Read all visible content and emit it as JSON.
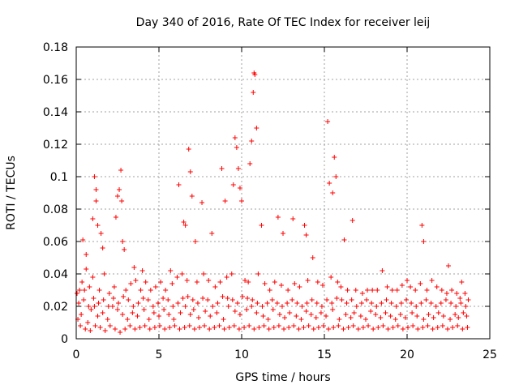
{
  "chart_data": {
    "type": "scatter",
    "title": "Day 340 of 2016, Rate Of TEC Index for receiver leij",
    "xlabel": "GPS time / hours",
    "ylabel": "ROTI / TECUs",
    "xlim": [
      0,
      25
    ],
    "ylim": [
      0,
      0.18
    ],
    "x_ticks": [
      0,
      5,
      10,
      15,
      20,
      25
    ],
    "x_tick_labels": [
      "0",
      "5",
      "10",
      "15",
      "20",
      "25"
    ],
    "y_ticks": [
      0,
      0.02,
      0.04,
      0.06,
      0.08,
      0.1,
      0.12,
      0.14,
      0.16,
      0.18
    ],
    "y_tick_labels": [
      "0",
      "0.02",
      "0.04",
      "0.06",
      "0.08",
      "0.1",
      "0.12",
      "0.14",
      "0.16",
      "0.18"
    ],
    "grid": true,
    "marker": "+",
    "marker_color": "#ff0000",
    "series": [
      {
        "name": "ROTI",
        "x": [
          0.4,
          0.6,
          0.6,
          1.0,
          1.1,
          1.2,
          1.2,
          1.3,
          1.5,
          1.6,
          2.4,
          2.5,
          2.6,
          2.7,
          2.75,
          2.8,
          2.9,
          3.5,
          4.0,
          5.7,
          6.2,
          6.5,
          6.6,
          6.8,
          6.9,
          7.0,
          7.2,
          7.6,
          8.2,
          8.8,
          9.0,
          9.5,
          9.6,
          9.7,
          9.8,
          9.9,
          10.0,
          10.5,
          10.6,
          10.7,
          10.75,
          10.8,
          10.9,
          11.2,
          12.2,
          12.5,
          13.1,
          13.8,
          13.9,
          14.3,
          15.2,
          15.3,
          15.5,
          15.6,
          15.7,
          16.2,
          16.7,
          18.5,
          20.0,
          20.9,
          21.0,
          22.5,
          23.3,
          0.05,
          0.2,
          0.35,
          0.5,
          0.8,
          1.0,
          1.4,
          1.7,
          2.0,
          2.3,
          3.0,
          3.3,
          3.6,
          3.9,
          4.2,
          4.5,
          4.8,
          5.1,
          5.4,
          5.8,
          6.1,
          6.4,
          6.7,
          7.3,
          7.7,
          8.0,
          8.4,
          8.7,
          9.1,
          9.4,
          10.2,
          10.4,
          11.0,
          11.4,
          11.7,
          12.0,
          12.4,
          12.8,
          13.2,
          13.5,
          14.0,
          14.6,
          14.9,
          15.4,
          15.8,
          16.0,
          16.4,
          16.9,
          17.3,
          17.6,
          17.9,
          18.2,
          18.8,
          19.1,
          19.4,
          19.7,
          20.2,
          20.5,
          20.8,
          21.2,
          21.5,
          21.8,
          22.1,
          22.4,
          22.7,
          23.0,
          23.2,
          23.5,
          23.7,
          0.1,
          0.3,
          0.7,
          0.9,
          1.1,
          1.3,
          1.6,
          1.9,
          2.2,
          2.5,
          2.8,
          3.1,
          3.4,
          3.7,
          4.1,
          4.4,
          4.7,
          5.0,
          5.3,
          5.6,
          5.9,
          6.3,
          6.6,
          6.9,
          7.1,
          7.4,
          7.8,
          8.1,
          8.5,
          8.9,
          9.2,
          9.6,
          9.9,
          10.3,
          10.6,
          10.9,
          11.3,
          11.6,
          11.9,
          12.3,
          12.6,
          12.9,
          13.3,
          13.6,
          13.9,
          14.2,
          14.5,
          14.8,
          15.1,
          15.5,
          15.9,
          16.3,
          16.6,
          16.8,
          17.2,
          17.5,
          17.8,
          18.1,
          18.4,
          18.7,
          19.0,
          19.3,
          19.6,
          19.9,
          20.3,
          20.6,
          21.0,
          21.3,
          21.6,
          21.9,
          22.2,
          22.6,
          22.9,
          23.1,
          23.4,
          23.6,
          0.15,
          0.45,
          0.75,
          1.05,
          1.35,
          1.65,
          1.95,
          2.25,
          2.55,
          2.85,
          3.15,
          3.45,
          3.75,
          4.05,
          4.35,
          4.65,
          4.95,
          5.25,
          5.55,
          5.85,
          6.15,
          6.45,
          6.75,
          7.05,
          7.35,
          7.65,
          7.95,
          8.25,
          8.55,
          8.85,
          9.15,
          9.45,
          9.75,
          10.05,
          10.35,
          10.65,
          10.95,
          11.25,
          11.55,
          11.85,
          12.15,
          12.45,
          12.75,
          13.05,
          13.35,
          13.65,
          13.95,
          14.25,
          14.55,
          14.85,
          15.15,
          15.45,
          15.75,
          16.05,
          16.35,
          16.65,
          16.95,
          17.25,
          17.55,
          17.85,
          18.15,
          18.45,
          18.75,
          19.05,
          19.35,
          19.65,
          19.95,
          20.25,
          20.55,
          20.85,
          21.15,
          21.45,
          21.75,
          22.05,
          22.35,
          22.65,
          22.95,
          23.25,
          23.55,
          0.25,
          0.55,
          0.85,
          1.15,
          1.45,
          1.75,
          2.05,
          2.35,
          2.65,
          2.95,
          3.25,
          3.55,
          3.85,
          4.15,
          4.45,
          4.75,
          5.05,
          5.35,
          5.65,
          5.95,
          6.25,
          6.55,
          6.85,
          7.15,
          7.45,
          7.75,
          8.05,
          8.35,
          8.65,
          8.95,
          9.25,
          9.55,
          9.85,
          10.15,
          10.45,
          10.75,
          11.05,
          11.35,
          11.65,
          11.95,
          12.25,
          12.55,
          12.85,
          13.15,
          13.45,
          13.75,
          14.05,
          14.35,
          14.65,
          14.95,
          15.25,
          15.55,
          15.85,
          16.15,
          16.45,
          16.75,
          17.05,
          17.35,
          17.65,
          17.95,
          18.25,
          18.55,
          18.85,
          19.15,
          19.45,
          19.75,
          20.05,
          20.35,
          20.65,
          20.95,
          21.25,
          21.55,
          21.85,
          22.15,
          22.45,
          22.75,
          23.05,
          23.35,
          23.65
        ],
        "y": [
          0.061,
          0.052,
          0.043,
          0.074,
          0.1,
          0.092,
          0.085,
          0.07,
          0.065,
          0.056,
          0.075,
          0.088,
          0.092,
          0.104,
          0.085,
          0.06,
          0.055,
          0.044,
          0.042,
          0.042,
          0.095,
          0.072,
          0.07,
          0.117,
          0.103,
          0.088,
          0.06,
          0.084,
          0.065,
          0.105,
          0.085,
          0.095,
          0.124,
          0.118,
          0.105,
          0.093,
          0.085,
          0.108,
          0.122,
          0.152,
          0.164,
          0.163,
          0.13,
          0.07,
          0.075,
          0.065,
          0.074,
          0.07,
          0.064,
          0.05,
          0.134,
          0.096,
          0.09,
          0.112,
          0.1,
          0.061,
          0.073,
          0.042,
          0.036,
          0.07,
          0.06,
          0.045,
          0.035,
          0.028,
          0.03,
          0.035,
          0.03,
          0.032,
          0.038,
          0.03,
          0.04,
          0.028,
          0.032,
          0.03,
          0.034,
          0.036,
          0.03,
          0.035,
          0.03,
          0.032,
          0.035,
          0.03,
          0.034,
          0.038,
          0.04,
          0.036,
          0.035,
          0.04,
          0.036,
          0.032,
          0.035,
          0.038,
          0.04,
          0.036,
          0.035,
          0.04,
          0.034,
          0.03,
          0.035,
          0.033,
          0.03,
          0.034,
          0.032,
          0.036,
          0.035,
          0.033,
          0.038,
          0.035,
          0.032,
          0.03,
          0.03,
          0.028,
          0.03,
          0.03,
          0.03,
          0.032,
          0.03,
          0.03,
          0.033,
          0.032,
          0.03,
          0.034,
          0.03,
          0.036,
          0.032,
          0.03,
          0.028,
          0.03,
          0.028,
          0.025,
          0.028,
          0.024,
          0.012,
          0.015,
          0.01,
          0.018,
          0.02,
          0.014,
          0.016,
          0.012,
          0.02,
          0.018,
          0.015,
          0.012,
          0.016,
          0.014,
          0.018,
          0.012,
          0.016,
          0.014,
          0.018,
          0.015,
          0.012,
          0.016,
          0.02,
          0.015,
          0.018,
          0.013,
          0.017,
          0.014,
          0.016,
          0.012,
          0.02,
          0.017,
          0.015,
          0.018,
          0.02,
          0.016,
          0.014,
          0.012,
          0.018,
          0.015,
          0.013,
          0.016,
          0.014,
          0.012,
          0.017,
          0.015,
          0.013,
          0.016,
          0.014,
          0.018,
          0.012,
          0.015,
          0.013,
          0.016,
          0.014,
          0.012,
          0.017,
          0.015,
          0.013,
          0.016,
          0.014,
          0.012,
          0.015,
          0.013,
          0.016,
          0.014,
          0.012,
          0.015,
          0.013,
          0.016,
          0.014,
          0.012,
          0.015,
          0.013,
          0.016,
          0.014,
          0.022,
          0.024,
          0.02,
          0.025,
          0.022,
          0.024,
          0.02,
          0.025,
          0.022,
          0.026,
          0.024,
          0.02,
          0.022,
          0.025,
          0.024,
          0.02,
          0.022,
          0.025,
          0.024,
          0.02,
          0.022,
          0.025,
          0.026,
          0.024,
          0.022,
          0.025,
          0.024,
          0.02,
          0.022,
          0.026,
          0.025,
          0.024,
          0.022,
          0.026,
          0.025,
          0.024,
          0.022,
          0.02,
          0.022,
          0.024,
          0.022,
          0.02,
          0.022,
          0.024,
          0.022,
          0.02,
          0.022,
          0.024,
          0.022,
          0.02,
          0.024,
          0.022,
          0.025,
          0.024,
          0.022,
          0.024,
          0.02,
          0.022,
          0.024,
          0.022,
          0.02,
          0.022,
          0.024,
          0.022,
          0.02,
          0.022,
          0.024,
          0.022,
          0.02,
          0.022,
          0.024,
          0.022,
          0.02,
          0.022,
          0.024,
          0.022,
          0.02,
          0.022,
          0.02,
          0.008,
          0.006,
          0.005,
          0.008,
          0.007,
          0.005,
          0.008,
          0.006,
          0.004,
          0.006,
          0.008,
          0.006,
          0.007,
          0.008,
          0.006,
          0.007,
          0.008,
          0.006,
          0.007,
          0.008,
          0.006,
          0.007,
          0.008,
          0.006,
          0.007,
          0.008,
          0.006,
          0.007,
          0.008,
          0.006,
          0.007,
          0.008,
          0.006,
          0.007,
          0.008,
          0.006,
          0.007,
          0.008,
          0.006,
          0.007,
          0.008,
          0.006,
          0.007,
          0.008,
          0.006,
          0.007,
          0.008,
          0.006,
          0.007,
          0.008,
          0.006,
          0.007,
          0.008,
          0.006,
          0.007,
          0.008,
          0.006,
          0.007,
          0.008,
          0.006,
          0.007,
          0.008,
          0.006,
          0.007,
          0.008,
          0.006,
          0.007,
          0.008,
          0.006,
          0.007,
          0.008,
          0.006,
          0.007,
          0.008,
          0.006,
          0.007,
          0.008,
          0.006,
          0.007
        ]
      }
    ]
  }
}
